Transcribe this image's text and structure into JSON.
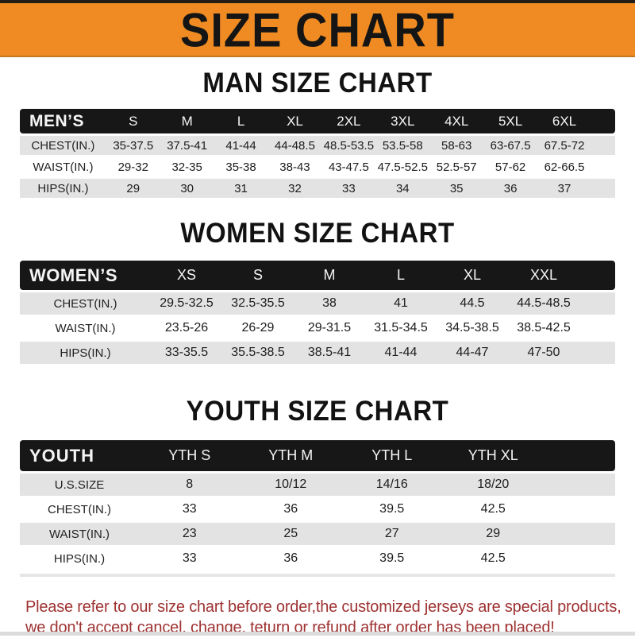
{
  "banner": {
    "title": "SIZE CHART"
  },
  "colors": {
    "banner_orange": "#ef8b22",
    "bar_black": "#171717",
    "row_gray": "#e3e3e3",
    "note_red": "#9e3131"
  },
  "sections": [
    {
      "heading": "MAN SIZE CHART",
      "table": {
        "label": "MEN’S",
        "columns": [
          "S",
          "M",
          "L",
          "XL",
          "2XL",
          "3XL",
          "4XL",
          "5XL",
          "6XL"
        ],
        "rows": [
          {
            "label": "CHEST(IN.)",
            "values": [
              "35-37.5",
              "37.5-41",
              "41-44",
              "44-48.5",
              "48.5-53.5",
              "53.5-58",
              "58-63",
              "63-67.5",
              "67.5-72"
            ]
          },
          {
            "label": "WAIST(IN.)",
            "values": [
              "29-32",
              "32-35",
              "35-38",
              "38-43",
              "43-47.5",
              "47.5-52.5",
              "52.5-57",
              "57-62",
              "62-66.5"
            ]
          },
          {
            "label": "HIPS(IN.)",
            "values": [
              "29",
              "30",
              "31",
              "32",
              "33",
              "34",
              "35",
              "36",
              "37"
            ]
          }
        ]
      }
    },
    {
      "heading": "WOMEN SIZE CHART",
      "table": {
        "label": "WOMEN’S",
        "columns": [
          "XS",
          "S",
          "M",
          "L",
          "XL",
          "XXL"
        ],
        "rows": [
          {
            "label": "CHEST(IN.)",
            "values": [
              "29.5-32.5",
              "32.5-35.5",
              "38",
              "41",
              "44.5",
              "44.5-48.5"
            ]
          },
          {
            "label": "WAIST(IN.)",
            "values": [
              "23.5-26",
              "26-29",
              "29-31.5",
              "31.5-34.5",
              "34.5-38.5",
              "38.5-42.5"
            ]
          },
          {
            "label": "HIPS(IN.)",
            "values": [
              "33-35.5",
              "35.5-38.5",
              "38.5-41",
              "41-44",
              "44-47",
              "47-50"
            ]
          }
        ]
      }
    },
    {
      "heading": "YOUTH SIZE CHART",
      "table": {
        "label": "YOUTH",
        "columns": [
          "YTH S",
          "YTH M",
          "YTH L",
          "YTH XL"
        ],
        "rows": [
          {
            "label": "U.S.SIZE",
            "values": [
              "8",
              "10/12",
              "14/16",
              "18/20"
            ]
          },
          {
            "label": "CHEST(IN.)",
            "values": [
              "33",
              "36",
              "39.5",
              "42.5"
            ]
          },
          {
            "label": "WAIST(IN.)",
            "values": [
              "23",
              "25",
              "27",
              "29"
            ]
          },
          {
            "label": "HIPS(IN.)",
            "values": [
              "33",
              "36",
              "39.5",
              "42.5"
            ]
          }
        ]
      }
    }
  ],
  "footer": {
    "line1": "Please refer to our size chart before order,the customized jerseys are special products,",
    "line2": "we don't accept cancel, change, teturn or refund after order has been placed!"
  }
}
